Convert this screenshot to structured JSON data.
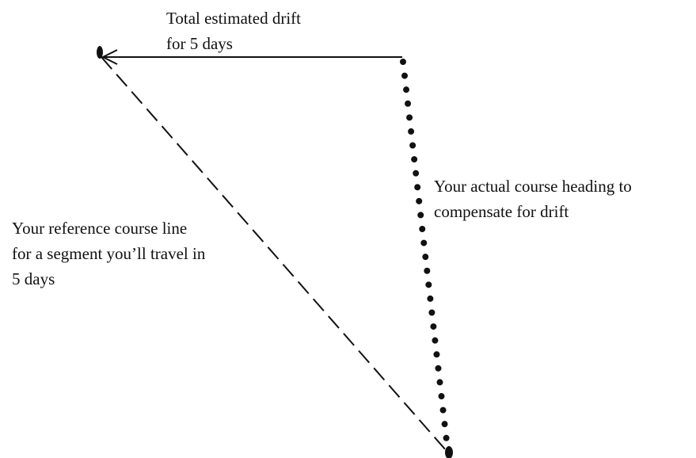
{
  "labels": [
    {
      "lines": [
        "Total estimated drift",
        "for 5 days"
      ]
    },
    {
      "lines": [
        "Your actual course heading to",
        "compensate for drift"
      ]
    },
    {
      "lines": [
        "Your reference course line",
        "for a segment you’ll travel in",
        "5 days"
      ]
    }
  ]
}
